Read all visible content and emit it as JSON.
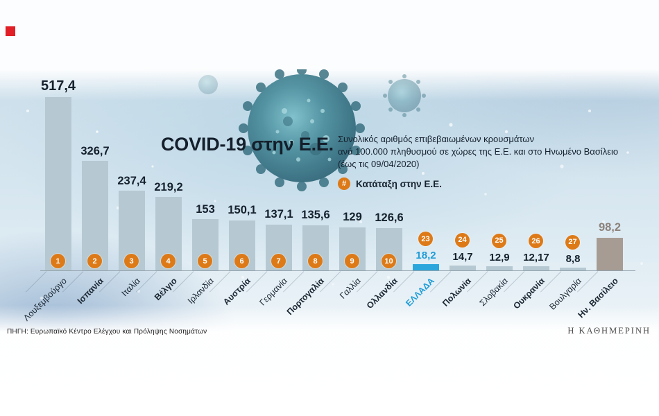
{
  "brand": {
    "masthead": "Η ΚΑΘΗΜΕΡΙΝΗ"
  },
  "header": {
    "title": "COVID-19 στην Ε.Ε.",
    "subtitle_lines": [
      "Συνολικός αριθμός επιβεβαιωμένων κρουσμάτων",
      "ανά 100.000 πληθυσμού σε χώρες της Ε.Ε. και στο Ηνωμένο Βασίλειο",
      "(έως τις 09/04/2020)"
    ],
    "legend_symbol": "#",
    "legend_label": "Κατάταξη στην Ε.Ε."
  },
  "footer": {
    "source": "ΠΗΓΗ: Ευρωπαϊκό Κέντρο Ελέγχου και Πρόληψης Νοσημάτων"
  },
  "colors": {
    "logo_red": "#e01f26",
    "accent_orange": "#dd7a17",
    "bar": "#b6c9d2",
    "greece_bar": "#2aa6dc",
    "uk_bar": "#a79c94",
    "value_text": "#15212d",
    "greece_text": "#1e9cd7",
    "uk_text": "#8d837c"
  },
  "chart_data": {
    "type": "bar",
    "title": "COVID-19 στην Ε.Ε.",
    "subtitle": "Συνολικός αριθμός επιβεβαιωμένων κρουσμάτων ανά 100.000 πληθυσμού σε χώρες της Ε.Ε. και στο Ηνωμένο Βασίλειο (έως τις 09/04/2020)",
    "ylabel": "κρούσματα ανά 100.000 πληθυσμού",
    "ylim": [
      0,
      540
    ],
    "legend": "Κατάταξη στην Ε.Ε.",
    "bars": [
      {
        "rank": 1,
        "country": "Λουξεμβούργο",
        "value": 517.4,
        "value_label": "517,4",
        "highlight": null,
        "bold_label": false
      },
      {
        "rank": 2,
        "country": "Ισπανία",
        "value": 326.7,
        "value_label": "326,7",
        "highlight": null,
        "bold_label": true
      },
      {
        "rank": 3,
        "country": "Ιταλία",
        "value": 237.4,
        "value_label": "237,4",
        "highlight": null,
        "bold_label": false
      },
      {
        "rank": 4,
        "country": "Βέλγιο",
        "value": 219.2,
        "value_label": "219,2",
        "highlight": null,
        "bold_label": true
      },
      {
        "rank": 5,
        "country": "Ιρλανδία",
        "value": 153,
        "value_label": "153",
        "highlight": null,
        "bold_label": false
      },
      {
        "rank": 6,
        "country": "Αυστρία",
        "value": 150.1,
        "value_label": "150,1",
        "highlight": null,
        "bold_label": true
      },
      {
        "rank": 7,
        "country": "Γερμανία",
        "value": 137.1,
        "value_label": "137,1",
        "highlight": null,
        "bold_label": false
      },
      {
        "rank": 8,
        "country": "Πορτογαλία",
        "value": 135.6,
        "value_label": "135,6",
        "highlight": null,
        "bold_label": true
      },
      {
        "rank": 9,
        "country": "Γαλλία",
        "value": 129,
        "value_label": "129",
        "highlight": null,
        "bold_label": false
      },
      {
        "rank": 10,
        "country": "Ολλανδία",
        "value": 126.6,
        "value_label": "126,6",
        "highlight": null,
        "bold_label": true
      },
      {
        "rank": 23,
        "country": "ΕΛΛΑΔΑ",
        "value": 18.2,
        "value_label": "18,2",
        "highlight": "greece",
        "bold_label": true
      },
      {
        "rank": 24,
        "country": "Πολωνία",
        "value": 14.7,
        "value_label": "14,7",
        "highlight": null,
        "bold_label": true
      },
      {
        "rank": 25,
        "country": "Σλοβακία",
        "value": 12.9,
        "value_label": "12,9",
        "highlight": null,
        "bold_label": false
      },
      {
        "rank": 26,
        "country": "Ουκρανία",
        "value": 12.17,
        "value_label": "12,17",
        "highlight": null,
        "bold_label": true
      },
      {
        "rank": 27,
        "country": "Βουλγαρία",
        "value": 8.8,
        "value_label": "8,8",
        "highlight": null,
        "bold_label": false
      },
      {
        "rank": null,
        "country": "Ην. Βασίλειο",
        "value": 98.2,
        "value_label": "98,2",
        "highlight": "uk",
        "bold_label": true
      }
    ]
  }
}
